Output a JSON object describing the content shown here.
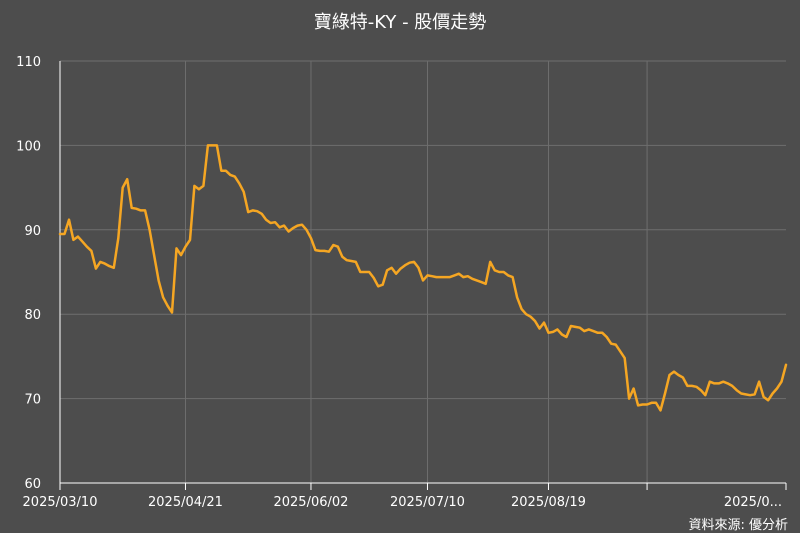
{
  "title": "寶綠特-KY - 股價走勢",
  "source": "資料來源: 優分析",
  "colors": {
    "background": "#4d4d4d",
    "line": "#f5a623",
    "grid": "#6e6e6e",
    "axis": "#ffffff",
    "text": "#ffffff"
  },
  "chart_data": {
    "type": "line",
    "title": "寶綠特-KY - 股價走勢",
    "xlabel": "",
    "ylabel": "",
    "ylim": [
      60,
      110
    ],
    "yticks": [
      60,
      70,
      80,
      90,
      100,
      110
    ],
    "xticks": [
      {
        "label": "2025/03/10",
        "index": 0
      },
      {
        "label": "2025/04/21",
        "index": 28
      },
      {
        "label": "2025/06/02",
        "index": 56
      },
      {
        "label": "2025/07/10",
        "index": 82
      },
      {
        "label": "2025/08/19",
        "index": 109
      },
      {
        "label": "2025/0...",
        "index": 131
      }
    ],
    "grid": true,
    "series": [
      {
        "values": [
          89.5,
          89.5,
          91.2,
          88.8,
          89.2,
          88.6,
          88.0,
          87.5,
          85.4,
          86.2,
          86.0,
          85.7,
          85.5,
          89.0,
          95.0,
          96.0,
          92.6,
          92.5,
          92.3,
          92.3,
          90.0,
          87.0,
          84.0,
          82.0,
          81.0,
          80.2,
          87.8,
          87.0,
          88.0,
          88.8,
          95.2,
          94.8,
          95.2,
          100.0,
          100.0,
          100.0,
          97.0,
          97.0,
          96.5,
          96.3,
          95.5,
          94.5,
          92.1,
          92.3,
          92.2,
          91.9,
          91.2,
          90.8,
          90.9,
          90.3,
          90.5,
          89.8,
          90.2,
          90.5,
          90.6,
          90.0,
          89.0,
          87.6,
          87.5,
          87.5,
          87.4,
          88.2,
          88.0,
          86.8,
          86.4,
          86.3,
          86.2,
          85.0,
          85.0,
          85.0,
          84.3,
          83.3,
          83.5,
          85.2,
          85.5,
          84.8,
          85.4,
          85.8,
          86.1,
          86.2,
          85.5,
          84.0,
          84.6,
          84.5,
          84.4,
          84.4,
          84.4,
          84.4,
          84.6,
          84.8,
          84.4,
          84.5,
          84.2,
          84.0,
          83.8,
          83.6,
          86.2,
          85.2,
          85.0,
          85.0,
          84.6,
          84.4,
          82.0,
          80.6,
          80.0,
          79.7,
          79.2,
          78.3,
          79.0,
          77.8,
          77.9,
          78.2,
          77.6,
          77.3,
          78.6,
          78.5,
          78.4,
          78.0,
          78.2,
          78.0,
          77.8,
          77.8,
          77.3,
          76.5,
          76.4,
          75.6,
          74.8,
          70.0,
          71.2,
          69.2,
          69.3,
          69.3,
          69.5,
          69.5,
          68.6,
          70.6,
          72.8,
          73.2,
          72.8,
          72.5,
          71.5,
          71.5,
          71.4,
          71.0,
          70.4,
          72.0,
          71.8,
          71.8,
          72.0,
          71.8,
          71.5,
          71.0,
          70.6,
          70.5,
          70.4,
          70.5,
          72.0,
          70.2,
          69.8,
          70.6,
          71.2,
          72.0,
          74.0
        ]
      }
    ]
  }
}
